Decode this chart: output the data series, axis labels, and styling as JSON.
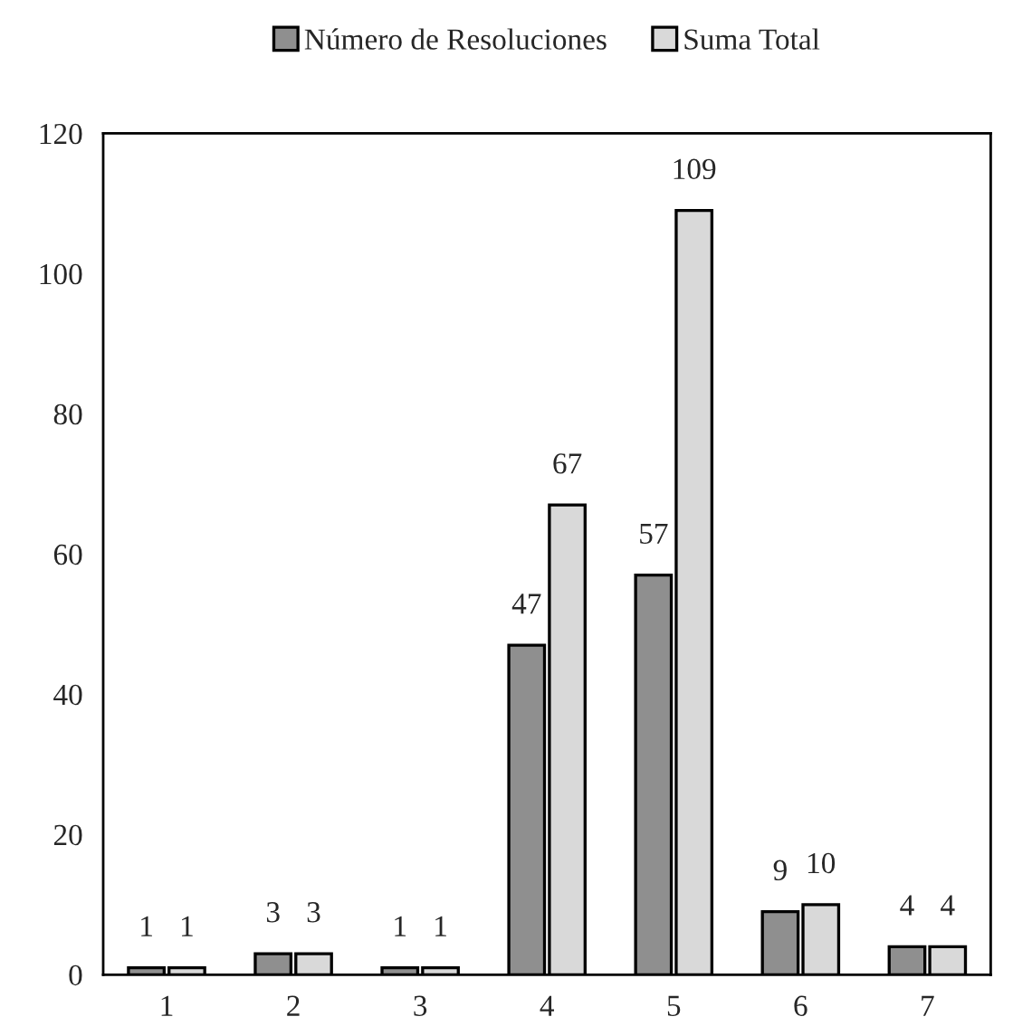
{
  "chart_data": {
    "type": "bar",
    "categories": [
      "1",
      "2",
      "3",
      "4",
      "5",
      "6",
      "7"
    ],
    "series": [
      {
        "name": "Número de Resoluciones",
        "color": "#8f8f8f",
        "values": [
          1,
          3,
          1,
          47,
          57,
          9,
          4
        ]
      },
      {
        "name": "Suma Total",
        "color": "#d9d9d9",
        "values": [
          1,
          3,
          1,
          67,
          109,
          10,
          4
        ]
      }
    ],
    "ylim": [
      0,
      120
    ],
    "yticks": [
      0,
      20,
      40,
      60,
      80,
      100,
      120
    ],
    "data_labels": true,
    "legend": "top",
    "grid": false
  }
}
